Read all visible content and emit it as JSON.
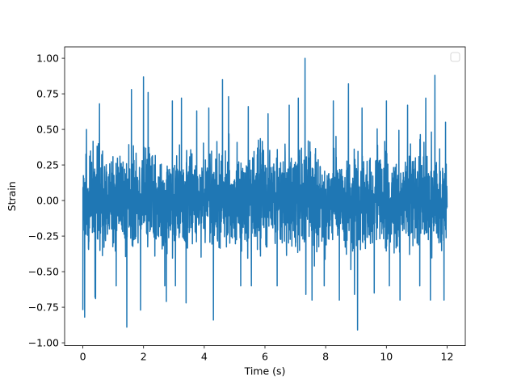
{
  "chart_data": {
    "type": "line",
    "title": "",
    "xlabel": "Time (s)",
    "ylabel": "Strain",
    "xlim": [
      -0.6,
      12.6
    ],
    "ylim": [
      -1.02,
      1.08
    ],
    "xticks": [
      0,
      2,
      4,
      6,
      8,
      10,
      12
    ],
    "xtick_labels": [
      "0",
      "2",
      "4",
      "6",
      "8",
      "10",
      "12"
    ],
    "yticks": [
      -1.0,
      -0.75,
      -0.5,
      -0.25,
      0.0,
      0.25,
      0.5,
      0.75,
      1.0
    ],
    "ytick_labels": [
      "−1.00",
      "−0.75",
      "−0.50",
      "−0.25",
      "0.00",
      "0.25",
      "0.50",
      "0.75",
      "1.00"
    ],
    "grid": false,
    "legend": {
      "location": "top-right",
      "entries": []
    },
    "series": [
      {
        "color": "#1f77b4",
        "description": "dense noise-like strain signal, 0 to 12 s, mostly within -0.5 to 0.5 with spikes up to ~1.0 and down to ~-0.91",
        "x_range": [
          0,
          12
        ],
        "typical_range": [
          -0.5,
          0.5
        ],
        "max": 1.0,
        "min": -0.91,
        "peaks": [
          {
            "x": 0.12,
            "y": 0.5
          },
          {
            "x": 0.55,
            "y": 0.63
          },
          {
            "x": 0.55,
            "y": 0.68
          },
          {
            "x": 1.45,
            "y": 0.8
          },
          {
            "x": 1.6,
            "y": 0.78
          },
          {
            "x": 2.0,
            "y": 0.87
          },
          {
            "x": 2.15,
            "y": 0.76
          },
          {
            "x": 2.95,
            "y": 0.7
          },
          {
            "x": 3.25,
            "y": 0.72
          },
          {
            "x": 3.75,
            "y": 0.63
          },
          {
            "x": 4.15,
            "y": 0.65
          },
          {
            "x": 4.6,
            "y": 0.85
          },
          {
            "x": 4.8,
            "y": 0.73
          },
          {
            "x": 5.45,
            "y": 0.66
          },
          {
            "x": 6.1,
            "y": 0.61
          },
          {
            "x": 6.8,
            "y": 0.67
          },
          {
            "x": 7.1,
            "y": 0.72
          },
          {
            "x": 7.32,
            "y": 1.0
          },
          {
            "x": 7.55,
            "y": 0.65
          },
          {
            "x": 8.25,
            "y": 0.7
          },
          {
            "x": 8.75,
            "y": 0.82
          },
          {
            "x": 9.2,
            "y": 0.65
          },
          {
            "x": 9.6,
            "y": 0.74
          },
          {
            "x": 10.0,
            "y": 0.7
          },
          {
            "x": 10.7,
            "y": 0.67
          },
          {
            "x": 11.3,
            "y": 0.72
          },
          {
            "x": 11.6,
            "y": 0.88
          },
          {
            "x": 11.95,
            "y": 0.55
          }
        ],
        "troughs": [
          {
            "x": 0.0,
            "y": -0.77
          },
          {
            "x": 0.06,
            "y": -0.82
          },
          {
            "x": 0.4,
            "y": -0.68
          },
          {
            "x": 0.42,
            "y": -0.69
          },
          {
            "x": 1.1,
            "y": -0.6
          },
          {
            "x": 1.45,
            "y": -0.89
          },
          {
            "x": 1.9,
            "y": -0.77
          },
          {
            "x": 2.7,
            "y": -0.6
          },
          {
            "x": 2.75,
            "y": -0.71
          },
          {
            "x": 3.05,
            "y": -0.6
          },
          {
            "x": 3.4,
            "y": -0.72
          },
          {
            "x": 4.3,
            "y": -0.84
          },
          {
            "x": 5.2,
            "y": -0.6
          },
          {
            "x": 5.55,
            "y": -0.6
          },
          {
            "x": 6.4,
            "y": -0.6
          },
          {
            "x": 7.35,
            "y": -0.66
          },
          {
            "x": 7.55,
            "y": -0.7
          },
          {
            "x": 7.95,
            "y": -0.6
          },
          {
            "x": 8.45,
            "y": -0.7
          },
          {
            "x": 8.95,
            "y": -0.66
          },
          {
            "x": 9.05,
            "y": -0.91
          },
          {
            "x": 9.6,
            "y": -0.65
          },
          {
            "x": 10.1,
            "y": -0.6
          },
          {
            "x": 10.45,
            "y": -0.7
          },
          {
            "x": 11.1,
            "y": -0.6
          },
          {
            "x": 11.45,
            "y": -0.7
          },
          {
            "x": 11.9,
            "y": -0.7
          }
        ]
      }
    ]
  }
}
